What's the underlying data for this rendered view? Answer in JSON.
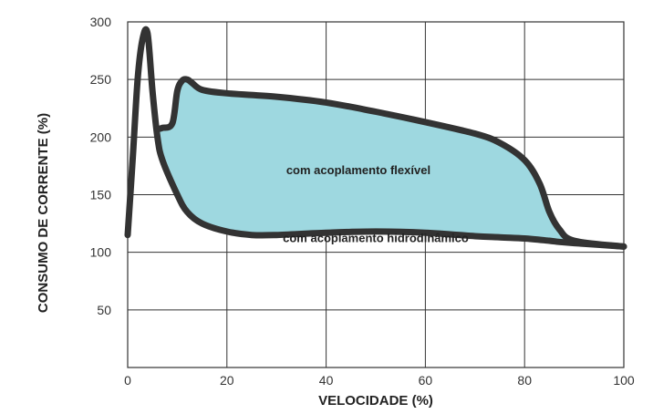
{
  "chart_data": {
    "type": "line",
    "xlabel": "VELOCIDADE (%)",
    "ylabel": "CONSUMO DE CORRENTE (%)",
    "xlim": [
      0,
      100
    ],
    "ylim": [
      0,
      300
    ],
    "x_ticks": [
      "0",
      "20",
      "40",
      "60",
      "80",
      "100"
    ],
    "y_ticks": [
      "50",
      "100",
      "150",
      "200",
      "250",
      "300"
    ],
    "grid": true,
    "fill_between_color": "#9ed8e0",
    "line_color": "#333333",
    "series": [
      {
        "x": [
          0,
          1,
          2,
          3,
          4,
          5,
          6,
          7,
          10,
          12,
          15,
          20,
          25,
          30,
          40,
          50,
          60,
          70,
          75,
          80,
          85,
          87,
          90,
          100
        ],
        "y": [
          115,
          180,
          250,
          285,
          290,
          240,
          200,
          180,
          150,
          135,
          125,
          118,
          115,
          115,
          117,
          118,
          117,
          114,
          113,
          112,
          110,
          109,
          108,
          105
        ]
      },
      {
        "x": [
          6,
          7,
          9,
          10,
          11,
          12,
          13,
          15,
          20,
          30,
          40,
          50,
          60,
          70,
          75,
          80,
          83,
          85,
          87,
          90,
          100
        ],
        "y": [
          207,
          208,
          212,
          240,
          249,
          250,
          247,
          241,
          238,
          235,
          230,
          222,
          213,
          203,
          195,
          180,
          160,
          135,
          120,
          110,
          105
        ]
      }
    ],
    "annotations": [
      {
        "text": "com acoplamento flexível",
        "x": 46.5,
        "y": 168
      },
      {
        "text": "com acoplamento hidrodinâmico",
        "x": 50,
        "y": 109
      }
    ]
  }
}
